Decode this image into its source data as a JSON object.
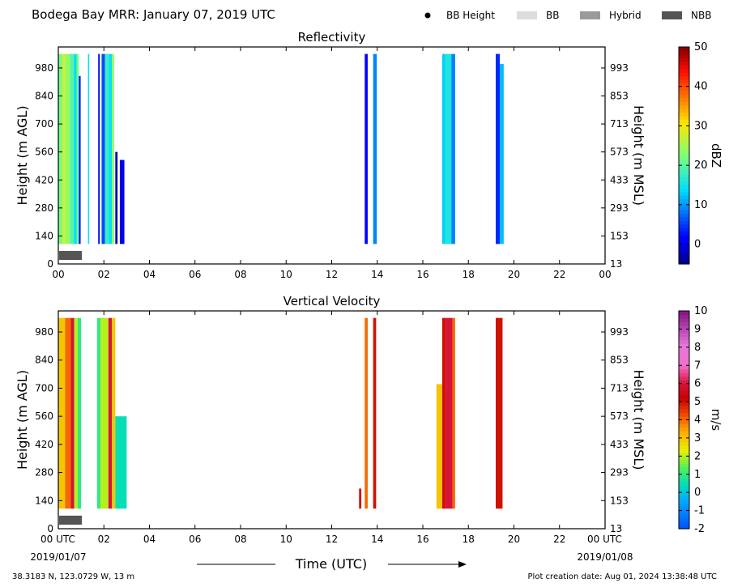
{
  "header": {
    "title": "Bodega Bay MRR:  January 07, 2019 UTC",
    "legend": [
      {
        "label": "BB Height",
        "symbol": "dot",
        "color": "#000000"
      },
      {
        "label": "BB",
        "symbol": "box",
        "color": "#dcdcdc"
      },
      {
        "label": "Hybrid",
        "symbol": "box",
        "color": "#9a9a9a"
      },
      {
        "label": "NBB",
        "symbol": "box",
        "color": "#555555"
      }
    ]
  },
  "chart_data": [
    {
      "type": "heatmap",
      "title": "Reflectivity",
      "ylabel": "Height (m AGL)",
      "ylabel_right": "Height (m MSL)",
      "x_ticks": [
        "00",
        "02",
        "04",
        "06",
        "08",
        "10",
        "12",
        "14",
        "16",
        "18",
        "20",
        "22",
        "00"
      ],
      "xlim": [
        0,
        24
      ],
      "y_ticks_left": [
        0,
        140,
        280,
        420,
        560,
        700,
        840,
        980
      ],
      "y_ticks_right": [
        13,
        153,
        293,
        433,
        573,
        713,
        853,
        993
      ],
      "ylim": [
        0,
        1085
      ],
      "colorbar": {
        "label": "dBZ",
        "min": -5,
        "max": 50,
        "ticks": [
          0,
          10,
          20,
          30,
          40,
          50
        ],
        "map": "jet"
      },
      "bands": [
        {
          "x0": 0.0,
          "x1": 0.18,
          "y1": 1050,
          "value": 22
        },
        {
          "x0": 0.18,
          "x1": 0.3,
          "y1": 1050,
          "value": 28
        },
        {
          "x0": 0.3,
          "x1": 0.5,
          "y1": 1050,
          "value": 24
        },
        {
          "x0": 0.5,
          "x1": 0.68,
          "y1": 1050,
          "value": 20
        },
        {
          "x0": 0.68,
          "x1": 0.8,
          "y1": 1050,
          "value": 14
        },
        {
          "x0": 0.8,
          "x1": 0.9,
          "y1": 1050,
          "value": 22
        },
        {
          "x0": 0.9,
          "x1": 0.98,
          "y1": 940,
          "value": 3
        },
        {
          "x0": 1.3,
          "x1": 1.36,
          "y1": 1050,
          "value": 15
        },
        {
          "x0": 1.75,
          "x1": 1.82,
          "y1": 1050,
          "value": 1
        },
        {
          "x0": 1.9,
          "x1": 2.05,
          "y1": 1050,
          "value": 6
        },
        {
          "x0": 2.05,
          "x1": 2.22,
          "y1": 1050,
          "value": 18
        },
        {
          "x0": 2.22,
          "x1": 2.35,
          "y1": 1050,
          "value": 14
        },
        {
          "x0": 2.35,
          "x1": 2.45,
          "y1": 1050,
          "value": 24
        },
        {
          "x0": 2.5,
          "x1": 2.6,
          "y1": 560,
          "value": -2
        },
        {
          "x0": 2.7,
          "x1": 2.9,
          "y1": 520,
          "value": 0
        },
        {
          "x0": 13.45,
          "x1": 13.58,
          "y1": 1050,
          "value": 2
        },
        {
          "x0": 13.82,
          "x1": 13.98,
          "y1": 1050,
          "value": 9
        },
        {
          "x0": 16.85,
          "x1": 16.98,
          "y1": 1050,
          "value": 13
        },
        {
          "x0": 16.98,
          "x1": 17.25,
          "y1": 1050,
          "value": 16
        },
        {
          "x0": 17.25,
          "x1": 17.42,
          "y1": 1050,
          "value": 9
        },
        {
          "x0": 19.2,
          "x1": 19.38,
          "y1": 1050,
          "value": 4
        },
        {
          "x0": 19.38,
          "x1": 19.55,
          "y1": 1000,
          "value": 12
        }
      ],
      "bb_flags": [
        {
          "x0": 0.0,
          "x1": 1.0,
          "type": "NBB"
        }
      ]
    },
    {
      "type": "heatmap",
      "title": "Vertical Velocity",
      "ylabel": "Height (m AGL)",
      "ylabel_right": "Height (m MSL)",
      "xlabel": "Time (UTC)",
      "x_ticks": [
        "00 UTC",
        "02",
        "04",
        "06",
        "08",
        "10",
        "12",
        "14",
        "16",
        "18",
        "20",
        "22",
        "00 UTC"
      ],
      "x_date_left": "2019/01/07",
      "x_date_right": "2019/01/08",
      "xlim": [
        0,
        24
      ],
      "y_ticks_left": [
        0,
        140,
        280,
        420,
        560,
        700,
        840,
        980
      ],
      "y_ticks_right": [
        13,
        153,
        293,
        433,
        573,
        713,
        853,
        993
      ],
      "ylim": [
        0,
        1085
      ],
      "colorbar": {
        "label": "m/s",
        "min": -2,
        "max": 10,
        "ticks": [
          -2,
          -1,
          0,
          1,
          2,
          3,
          4,
          5,
          6,
          7,
          8,
          9,
          10
        ],
        "map": "velocity"
      },
      "bands": [
        {
          "x0": 0.0,
          "x1": 0.3,
          "y1": 1050,
          "value": 3
        },
        {
          "x0": 0.3,
          "x1": 0.55,
          "y1": 1050,
          "value": 4
        },
        {
          "x0": 0.55,
          "x1": 0.7,
          "y1": 1050,
          "value": 6
        },
        {
          "x0": 0.7,
          "x1": 0.85,
          "y1": 1050,
          "value": 2
        },
        {
          "x0": 0.85,
          "x1": 1.0,
          "y1": 1050,
          "value": 1
        },
        {
          "x0": 1.7,
          "x1": 1.85,
          "y1": 1050,
          "value": 1
        },
        {
          "x0": 1.85,
          "x1": 2.2,
          "y1": 1050,
          "value": 2
        },
        {
          "x0": 2.2,
          "x1": 2.35,
          "y1": 1050,
          "value": 6
        },
        {
          "x0": 2.35,
          "x1": 2.5,
          "y1": 1050,
          "value": 3
        },
        {
          "x0": 2.5,
          "x1": 3.0,
          "y1": 560,
          "value": 0.5
        },
        {
          "x0": 13.2,
          "x1": 13.3,
          "y1": 200,
          "value": 5
        },
        {
          "x0": 13.45,
          "x1": 13.58,
          "y1": 1050,
          "value": 4
        },
        {
          "x0": 13.82,
          "x1": 13.95,
          "y1": 1050,
          "value": 5
        },
        {
          "x0": 16.6,
          "x1": 16.85,
          "y1": 720,
          "value": 3
        },
        {
          "x0": 16.85,
          "x1": 17.0,
          "y1": 1050,
          "value": 5
        },
        {
          "x0": 17.0,
          "x1": 17.3,
          "y1": 1050,
          "value": 6
        },
        {
          "x0": 17.3,
          "x1": 17.42,
          "y1": 1050,
          "value": 4
        },
        {
          "x0": 19.2,
          "x1": 19.5,
          "y1": 1050,
          "value": 5
        }
      ],
      "bb_flags": [
        {
          "x0": 0.0,
          "x1": 1.0,
          "type": "NBB"
        }
      ]
    }
  ],
  "footer": {
    "location": "38.3183 N, 123.0729 W, 13 m",
    "creation_date": "Plot creation date: Aug 01, 2024 13:38:48 UTC"
  }
}
